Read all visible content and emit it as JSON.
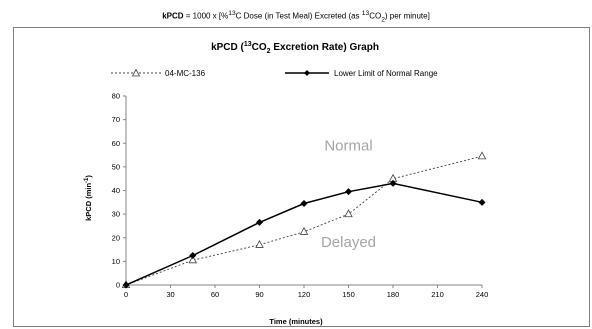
{
  "header_formula": {
    "bold_part": "kPCD",
    "text_part_1": " = 1000 x [%",
    "sup_1": "13",
    "text_part_2": "C Dose (in Test Meal) Excreted (as ",
    "sup_2": "13",
    "text_part_3": "CO",
    "sub_1": "2",
    "text_part_4": ")  per minute]"
  },
  "chart_data": {
    "type": "line",
    "title_parts": {
      "prefix": "kPCD (",
      "sup": "13",
      "mid": "CO",
      "sub": "2",
      "suffix": " Excretion Rate) Graph"
    },
    "xlabel": "Time (minutes)",
    "ylabel_parts": {
      "main": "kPCD (min",
      "sup": "-1",
      "end": ")"
    },
    "xlim": [
      0,
      240
    ],
    "ylim": [
      0,
      80
    ],
    "x_ticks": [
      0,
      30,
      60,
      90,
      120,
      150,
      180,
      210,
      240
    ],
    "y_ticks": [
      0,
      10,
      20,
      30,
      40,
      50,
      60,
      70,
      80
    ],
    "grid": false,
    "legend_position": "top",
    "series": [
      {
        "name": "04-MC-136",
        "style": "dashed",
        "marker": "open-triangle",
        "color": "#404040",
        "x": [
          0,
          45,
          90,
          120,
          150,
          180,
          240
        ],
        "y": [
          0,
          10.5,
          17,
          22.5,
          30,
          45,
          54.5
        ]
      },
      {
        "name": "Lower Limit of Normal Range",
        "style": "solid",
        "marker": "filled-diamond",
        "color": "#000000",
        "x": [
          0,
          45,
          90,
          120,
          150,
          180,
          240
        ],
        "y": [
          0,
          12.5,
          26.5,
          34.5,
          39.5,
          43,
          35
        ]
      }
    ],
    "annotations": [
      {
        "text": "Normal",
        "x": 150,
        "y": 57
      },
      {
        "text": "Delayed",
        "x": 150,
        "y": 16
      }
    ]
  }
}
